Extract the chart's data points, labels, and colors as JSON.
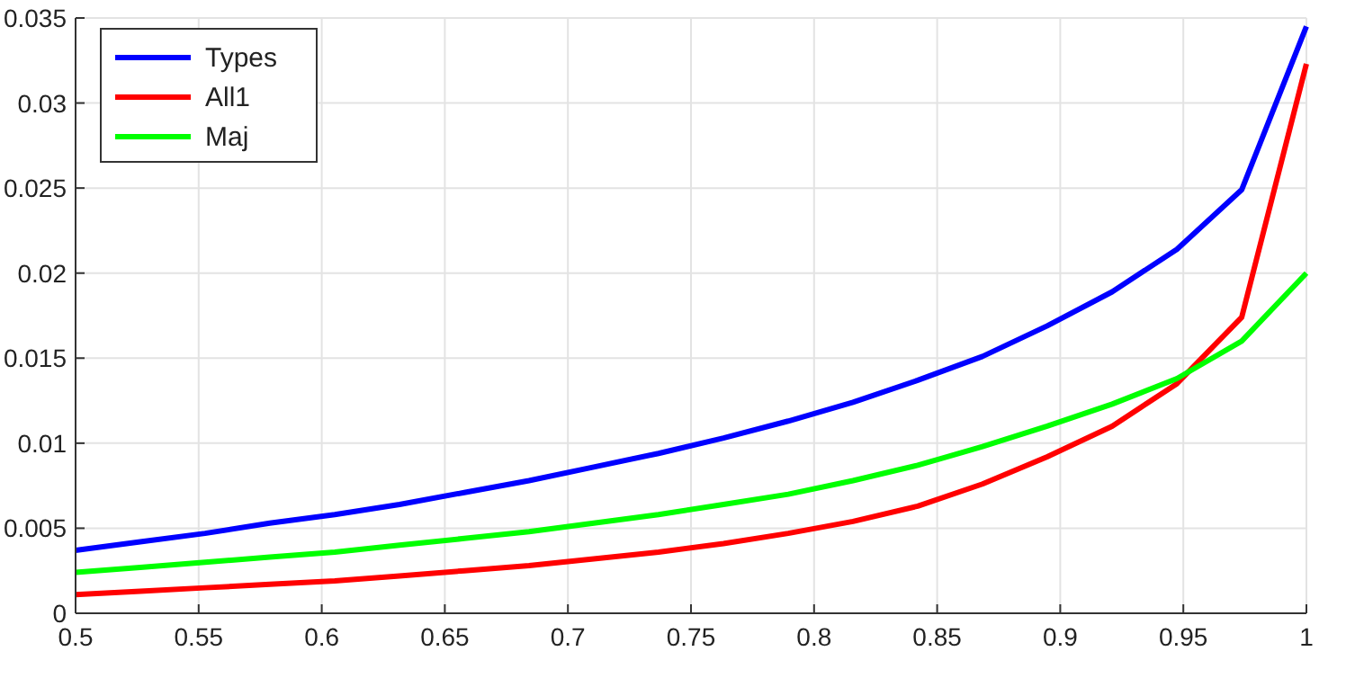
{
  "chart_data": {
    "type": "line",
    "x": [
      0.5,
      0.5263,
      0.5526,
      0.5789,
      0.6053,
      0.6316,
      0.6579,
      0.6842,
      0.7105,
      0.7368,
      0.7632,
      0.7895,
      0.8158,
      0.8421,
      0.8684,
      0.8947,
      0.9211,
      0.9474,
      0.9737,
      1
    ],
    "series": [
      {
        "name": "Types",
        "color": "#0000ff",
        "values": [
          0.0037,
          0.0042,
          0.0047,
          0.0053,
          0.0058,
          0.0064,
          0.0071,
          0.0078,
          0.0086,
          0.0094,
          0.0103,
          0.0113,
          0.0124,
          0.0137,
          0.0151,
          0.0169,
          0.0189,
          0.0214,
          0.0249,
          0.0345
        ]
      },
      {
        "name": "All1",
        "color": "#ff0000",
        "values": [
          0.0011,
          0.0013,
          0.0015,
          0.0017,
          0.0019,
          0.0022,
          0.0025,
          0.0028,
          0.0032,
          0.0036,
          0.0041,
          0.0047,
          0.0054,
          0.0063,
          0.0076,
          0.0092,
          0.011,
          0.0135,
          0.0174,
          0.0323
        ]
      },
      {
        "name": "Maj",
        "color": "#00ff00",
        "values": [
          0.0024,
          0.0027,
          0.003,
          0.0033,
          0.0036,
          0.004,
          0.0044,
          0.0048,
          0.0053,
          0.0058,
          0.0064,
          0.007,
          0.0078,
          0.0087,
          0.0098,
          0.011,
          0.0123,
          0.0138,
          0.016,
          0.02
        ]
      }
    ],
    "xlim": [
      0.5,
      1
    ],
    "xticks": [
      0.5,
      0.55,
      0.6,
      0.65,
      0.7,
      0.75,
      0.8,
      0.85,
      0.9,
      0.95,
      1
    ],
    "ylim": [
      0,
      0.035
    ],
    "yticks": [
      0,
      0.005,
      0.01,
      0.015,
      0.02,
      0.025,
      0.03,
      0.035
    ],
    "grid": true,
    "legend": "top left",
    "line_style": "solid"
  }
}
